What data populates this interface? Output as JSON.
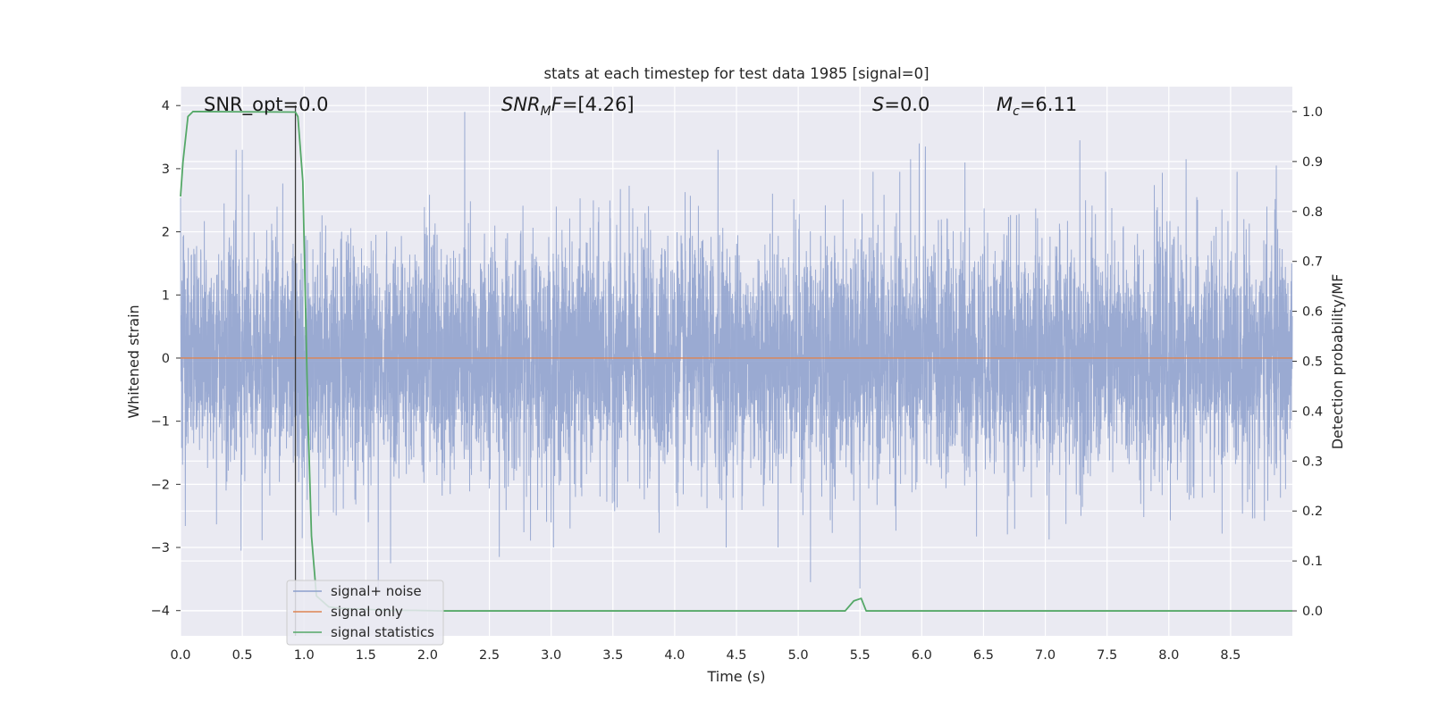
{
  "chart_data": {
    "type": "line",
    "title": "stats at each timestep for test data 1985 [signal=0]",
    "xlabel": "Time (s)",
    "ylabel_left": "Whitened strain",
    "ylabel_right": "Detection probability/MF",
    "xlim": [
      0.0,
      9.0
    ],
    "ylim_left": [
      -4.4,
      4.3
    ],
    "ylim_right": [
      -0.05,
      1.05
    ],
    "xticks": [
      "0.0",
      "0.5",
      "1.0",
      "1.5",
      "2.0",
      "2.5",
      "3.0",
      "3.5",
      "4.0",
      "4.5",
      "5.0",
      "5.5",
      "6.0",
      "6.5",
      "7.0",
      "7.5",
      "8.0",
      "8.5"
    ],
    "yticks_left": [
      "−4",
      "−3",
      "−2",
      "−1",
      "0",
      "1",
      "2",
      "3",
      "4"
    ],
    "yticks_right": [
      "0.0",
      "0.1",
      "0.2",
      "0.3",
      "0.4",
      "0.5",
      "0.6",
      "0.7",
      "0.8",
      "0.9",
      "1.0"
    ],
    "grid": true,
    "legend_position": "lower-left",
    "annotations": {
      "snr_opt": {
        "prefix": "SNR_opt=",
        "value": "0.0"
      },
      "snr_mf": {
        "var": "SNR",
        "sub": "M",
        "suffix": "F=",
        "value": "[4.26]"
      },
      "s_stat": {
        "var": "S",
        "value": "=0.0"
      },
      "mc": {
        "var": "M",
        "sub": "c",
        "value": "=6.11"
      }
    },
    "vertical_marker_x": 0.93,
    "series": [
      {
        "name": "signal+ noise",
        "axis": "left",
        "color": "#8c9fcc",
        "representation": "dense whitened-noise trace, ~N(0,1) at 4096 Hz",
        "peaks": [
          {
            "x": 0.45,
            "y": 3.3
          },
          {
            "x": 0.5,
            "y": 3.3
          },
          {
            "x": 2.3,
            "y": 3.9
          },
          {
            "x": 2.58,
            "y": 3.05
          },
          {
            "x": 4.35,
            "y": 3.3
          },
          {
            "x": 5.91,
            "y": 3.15
          },
          {
            "x": 5.98,
            "y": 3.4
          },
          {
            "x": 6.03,
            "y": 3.35
          },
          {
            "x": 6.35,
            "y": 3.1
          },
          {
            "x": 7.28,
            "y": 3.45
          },
          {
            "x": 8.14,
            "y": 3.15
          },
          {
            "x": 8.87,
            "y": 3.05
          },
          {
            "x": 1.6,
            "y": -3.7
          },
          {
            "x": 1.7,
            "y": -3.25
          },
          {
            "x": 5.1,
            "y": -3.55
          },
          {
            "x": 5.5,
            "y": -3.65
          },
          {
            "x": 0.49,
            "y": -3.05
          },
          {
            "x": 2.58,
            "y": -3.15
          }
        ]
      },
      {
        "name": "signal only",
        "axis": "left",
        "color": "#dd8452",
        "x": [
          0.0,
          9.0
        ],
        "y": [
          0.0,
          0.0
        ]
      },
      {
        "name": "signal statistics",
        "axis": "right",
        "color": "#55a868",
        "x": [
          0.0,
          0.02,
          0.06,
          0.1,
          0.15,
          0.93,
          0.95,
          0.99,
          1.03,
          1.06,
          1.1,
          1.2,
          1.3,
          1.5,
          1.7,
          1.9,
          2.1,
          5.38,
          5.45,
          5.51,
          5.55,
          9.0
        ],
        "y": [
          0.83,
          0.9,
          0.99,
          1.0,
          1.0,
          0.999,
          0.99,
          0.86,
          0.4,
          0.15,
          0.03,
          0.008,
          0.005,
          0.003,
          0.001,
          0.001,
          0.0,
          0.0,
          0.02,
          0.025,
          0.0,
          0.0
        ]
      }
    ]
  }
}
